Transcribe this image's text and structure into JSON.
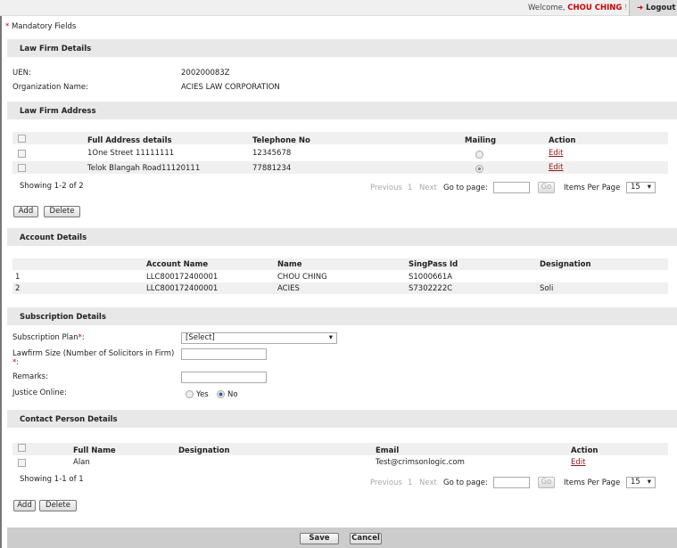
{
  "header": {
    "welcome": "Welcome, ",
    "user": "CHOU CHING",
    "exclaim": " !",
    "logout": "Logout"
  },
  "mandatory": {
    "star": "*",
    "text": " Mandatory Fields"
  },
  "law_firm_details": {
    "title": "Law Firm Details",
    "uen_label": "UEN:",
    "uen": "200200083Z",
    "org_label": "Organization Name:",
    "org": "ACIES LAW CORPORATION"
  },
  "address": {
    "title": "Law Firm Address",
    "headers": [
      "Full Address details",
      "Telephone No",
      "Mailing",
      "Action"
    ],
    "rows": [
      {
        "address": "1One Street 11111111",
        "phone": "12345678",
        "mailing": false,
        "action": "Edit"
      },
      {
        "address": "Telok Blangah Road11120111",
        "phone": "77881234",
        "mailing": true,
        "action": "Edit"
      }
    ],
    "showing": "Showing 1-2 of 2"
  },
  "pager": {
    "previous": "Previous",
    "page": "1",
    "next": "Next",
    "goto": "Go to page:",
    "go": "Go",
    "ipp": "Items Per Page",
    "ipp_value": "15"
  },
  "buttons": {
    "add": "Add",
    "delete": "Delete",
    "save": "Save",
    "cancel": "Cancel"
  },
  "account": {
    "title": "Account Details",
    "headers": [
      "",
      "Account Name",
      "Name",
      "SingPass Id",
      "Designation"
    ],
    "rows": [
      [
        "1",
        "LLC800172400001",
        "CHOU CHING",
        "S1000661A",
        ""
      ],
      [
        "2",
        "LLC800172400001",
        "ACIES",
        "S7302222C",
        "Soli"
      ]
    ]
  },
  "subscription": {
    "title": "Subscription Details",
    "plan_label": "Subscription Plan",
    "plan_value": "[Select]",
    "size_label": "Lawfirm Size (Number of Solicitors in Firm)",
    "star": "*",
    "colon": ":",
    "remarks_label": "Remarks:",
    "justice_label": "Justice Online:",
    "yes": "Yes",
    "no": "No",
    "justice_value": "No"
  },
  "contact": {
    "title": "Contact Person Details",
    "headers": [
      "Full Name",
      "Designation",
      "Email",
      "Action"
    ],
    "rows": [
      {
        "name": "Alan",
        "designation": "",
        "email": "Test@crimsonlogic.com",
        "action": "Edit"
      }
    ],
    "showing": "Showing 1-1 of 1"
  }
}
